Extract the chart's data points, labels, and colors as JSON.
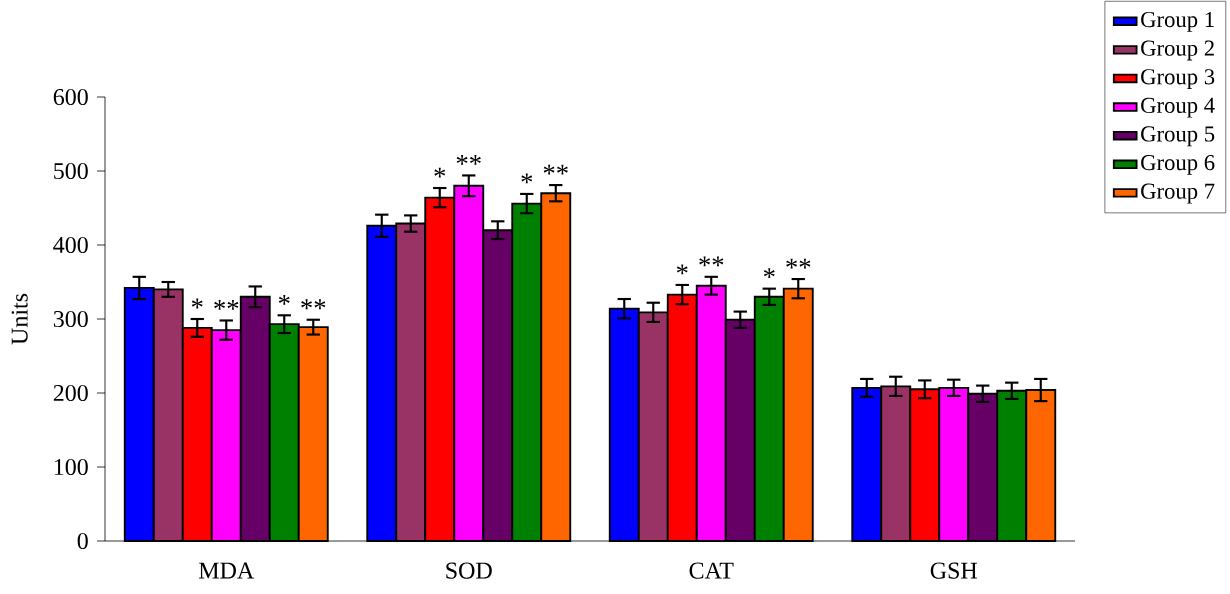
{
  "chart_data": {
    "type": "bar",
    "ylabel": "Units",
    "categories": [
      "MDA",
      "SOD",
      "CAT",
      "GSH"
    ],
    "ylim": [
      0,
      600
    ],
    "yticks": [
      0,
      100,
      200,
      300,
      400,
      500,
      600
    ],
    "legend": "top right",
    "series": [
      {
        "name": "Group 1",
        "color": "#0000ff",
        "values": [
          342,
          426,
          314,
          207
        ],
        "errors": [
          15,
          15,
          13,
          12
        ],
        "value_labels": [
          null,
          null,
          null,
          null
        ]
      },
      {
        "name": "Group 2",
        "color": "#993366",
        "values": [
          340,
          429,
          309,
          209
        ],
        "errors": [
          10,
          11,
          13,
          13
        ],
        "value_labels": [
          null,
          null,
          null,
          null
        ]
      },
      {
        "name": "Group 3",
        "color": "#ff0000",
        "values": [
          288,
          464,
          333,
          205
        ],
        "errors": [
          12,
          13,
          13,
          12
        ],
        "value_labels": [
          "*",
          "*",
          "*",
          null
        ]
      },
      {
        "name": "Group 4",
        "color": "#ff00ff",
        "values": [
          285,
          480,
          345,
          207
        ],
        "errors": [
          13,
          14,
          12,
          11
        ],
        "value_labels": [
          "**",
          "**",
          "**",
          null
        ]
      },
      {
        "name": "Group 5",
        "color": "#660066",
        "values": [
          330,
          420,
          299,
          199
        ],
        "errors": [
          14,
          12,
          11,
          11
        ],
        "value_labels": [
          null,
          null,
          null,
          null
        ]
      },
      {
        "name": "Group 6",
        "color": "#008000",
        "values": [
          293,
          456,
          330,
          203
        ],
        "errors": [
          12,
          13,
          11,
          11
        ],
        "value_labels": [
          "*",
          "*",
          "*",
          null
        ]
      },
      {
        "name": "Group 7",
        "color": "#ff6600",
        "values": [
          289,
          470,
          341,
          204
        ],
        "errors": [
          10,
          11,
          13,
          15
        ],
        "value_labels": [
          "**",
          "**",
          "**",
          null
        ]
      }
    ]
  }
}
